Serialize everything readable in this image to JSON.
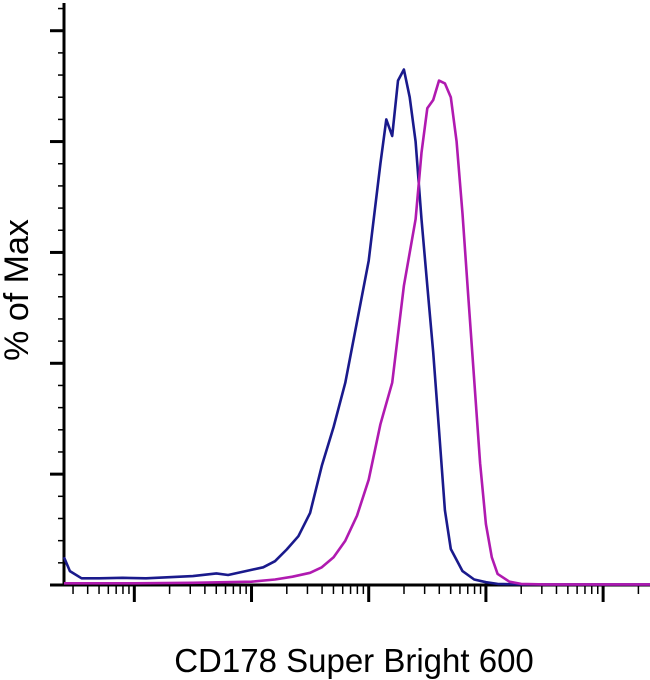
{
  "chart_data": {
    "type": "line",
    "title": "",
    "xlabel": "CD178 Super Bright 600",
    "ylabel": "% of Max",
    "x_scale": "log",
    "xlim": [
      -0.6,
      4.4
    ],
    "ylim": [
      0,
      105
    ],
    "x_decade_ticks": [
      0,
      1,
      2,
      3,
      4
    ],
    "y_major_ticks": [
      0,
      20,
      40,
      60,
      80,
      100
    ],
    "y_minor_step": 4,
    "grid": false,
    "legend": "none",
    "series": [
      {
        "color": "#1a1a8c",
        "points": [
          [
            -0.6,
            5.0
          ],
          [
            -0.55,
            2.5
          ],
          [
            -0.45,
            1.2
          ],
          [
            -0.3,
            1.2
          ],
          [
            -0.1,
            1.3
          ],
          [
            0.1,
            1.2
          ],
          [
            0.3,
            1.4
          ],
          [
            0.5,
            1.6
          ],
          [
            0.7,
            2.1
          ],
          [
            0.8,
            1.8
          ],
          [
            0.95,
            2.5
          ],
          [
            1.1,
            3.2
          ],
          [
            1.2,
            4.3
          ],
          [
            1.3,
            6.4
          ],
          [
            1.4,
            8.8
          ],
          [
            1.5,
            13.0
          ],
          [
            1.6,
            21.5
          ],
          [
            1.7,
            28.5
          ],
          [
            1.8,
            36.5
          ],
          [
            1.9,
            47.5
          ],
          [
            2.0,
            58.5
          ],
          [
            2.1,
            76.0
          ],
          [
            2.15,
            84.0
          ],
          [
            2.2,
            81.0
          ],
          [
            2.25,
            91.0
          ],
          [
            2.3,
            93.0
          ],
          [
            2.35,
            88.0
          ],
          [
            2.4,
            80.0
          ],
          [
            2.45,
            66.0
          ],
          [
            2.5,
            54.0
          ],
          [
            2.55,
            42.0
          ],
          [
            2.6,
            28.0
          ],
          [
            2.65,
            13.5
          ],
          [
            2.7,
            6.5
          ],
          [
            2.8,
            2.5
          ],
          [
            2.9,
            1.0
          ],
          [
            3.0,
            0.5
          ],
          [
            3.1,
            0.2
          ],
          [
            3.3,
            0.1
          ],
          [
            4.4,
            0.1
          ]
        ]
      },
      {
        "color": "#b01ab0",
        "points": [
          [
            -0.6,
            0.3
          ],
          [
            0.0,
            0.3
          ],
          [
            0.5,
            0.4
          ],
          [
            1.0,
            0.6
          ],
          [
            1.2,
            1.0
          ],
          [
            1.35,
            1.5
          ],
          [
            1.5,
            2.2
          ],
          [
            1.6,
            3.2
          ],
          [
            1.7,
            5.0
          ],
          [
            1.8,
            8.0
          ],
          [
            1.9,
            12.5
          ],
          [
            2.0,
            19.0
          ],
          [
            2.1,
            29.0
          ],
          [
            2.2,
            36.5
          ],
          [
            2.3,
            54.0
          ],
          [
            2.4,
            66.0
          ],
          [
            2.45,
            78.0
          ],
          [
            2.5,
            86.0
          ],
          [
            2.55,
            87.5
          ],
          [
            2.6,
            91.0
          ],
          [
            2.65,
            90.5
          ],
          [
            2.7,
            88.0
          ],
          [
            2.75,
            80.0
          ],
          [
            2.8,
            67.0
          ],
          [
            2.85,
            52.0
          ],
          [
            2.9,
            37.0
          ],
          [
            2.95,
            22.0
          ],
          [
            3.0,
            11.0
          ],
          [
            3.05,
            5.0
          ],
          [
            3.1,
            2.0
          ],
          [
            3.2,
            0.6
          ],
          [
            3.3,
            0.2
          ],
          [
            3.5,
            0.1
          ],
          [
            4.4,
            0.1
          ]
        ]
      }
    ]
  }
}
